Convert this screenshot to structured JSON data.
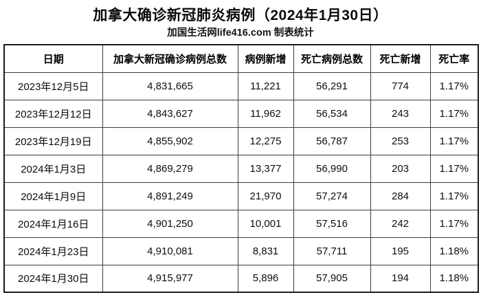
{
  "title": "加拿大确诊新冠肺炎病例（2024年1月30日）",
  "subtitle": "加国生活网life416.com 制表统计",
  "colors": {
    "background": "#ffffff",
    "text": "#000000",
    "border_outer": "#1a1a1a",
    "border_inner": "#3b3b3b"
  },
  "chart_data": {
    "type": "table",
    "title": "加拿大确诊新冠肺炎病例（2024年1月30日）",
    "subtitle": "加国生活网life416.com 制表统计",
    "columns": [
      "日期",
      "加拿大新冠确诊病例总数",
      "病例新增",
      "死亡病例总数",
      "死亡新增",
      "死亡率"
    ],
    "rows": [
      [
        "2023年12月5日",
        "4,831,665",
        "11,221",
        "56,291",
        "774",
        "1.17%"
      ],
      [
        "2023年12月12日",
        "4,843,627",
        "11,962",
        "56,534",
        "243",
        "1.17%"
      ],
      [
        "2023年12月19日",
        "4,855,902",
        "12,275",
        "56,787",
        "253",
        "1.17%"
      ],
      [
        "2024年1月3日",
        "4,869,279",
        "13,377",
        "56,990",
        "203",
        "1.17%"
      ],
      [
        "2024年1月9日",
        "4,891,249",
        "21,970",
        "57,274",
        "284",
        "1.17%"
      ],
      [
        "2024年1月16日",
        "4,901,250",
        "10,001",
        "57,516",
        "242",
        "1.17%"
      ],
      [
        "2024年1月23日",
        "4,910,081",
        "8,831",
        "57,711",
        "195",
        "1.18%"
      ],
      [
        "2024年1月30日",
        "4,915,977",
        "5,896",
        "57,905",
        "194",
        "1.18%"
      ]
    ]
  }
}
